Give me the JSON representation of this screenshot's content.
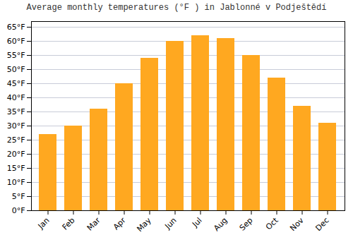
{
  "chart_data": {
    "type": "bar",
    "title": "Average monthly temperatures (°F ) in Jablonné v Podještědí",
    "categories": [
      "Jan",
      "Feb",
      "Mar",
      "Apr",
      "May",
      "Jun",
      "Jul",
      "Aug",
      "Sep",
      "Oct",
      "Nov",
      "Dec"
    ],
    "values": [
      27,
      30,
      36,
      45,
      54,
      60,
      62,
      61,
      55,
      47,
      37,
      31
    ],
    "color": "#FFA820",
    "ylim": [
      0,
      67
    ],
    "yticks": [
      {
        "value": 0,
        "label": "0°F"
      },
      {
        "value": 5,
        "label": "5°F"
      },
      {
        "value": 10,
        "label": "10°F"
      },
      {
        "value": 15,
        "label": "15°F"
      },
      {
        "value": 20,
        "label": "20°F"
      },
      {
        "value": 25,
        "label": "25°F"
      },
      {
        "value": 30,
        "label": "30°F"
      },
      {
        "value": 35,
        "label": "35°F"
      },
      {
        "value": 40,
        "label": "40°F"
      },
      {
        "value": 45,
        "label": "45°F"
      },
      {
        "value": 50,
        "label": "50°F"
      },
      {
        "value": 55,
        "label": "55°F"
      },
      {
        "value": 60,
        "label": "60°F"
      },
      {
        "value": 65,
        "label": "65°F"
      }
    ],
    "grid": true
  }
}
